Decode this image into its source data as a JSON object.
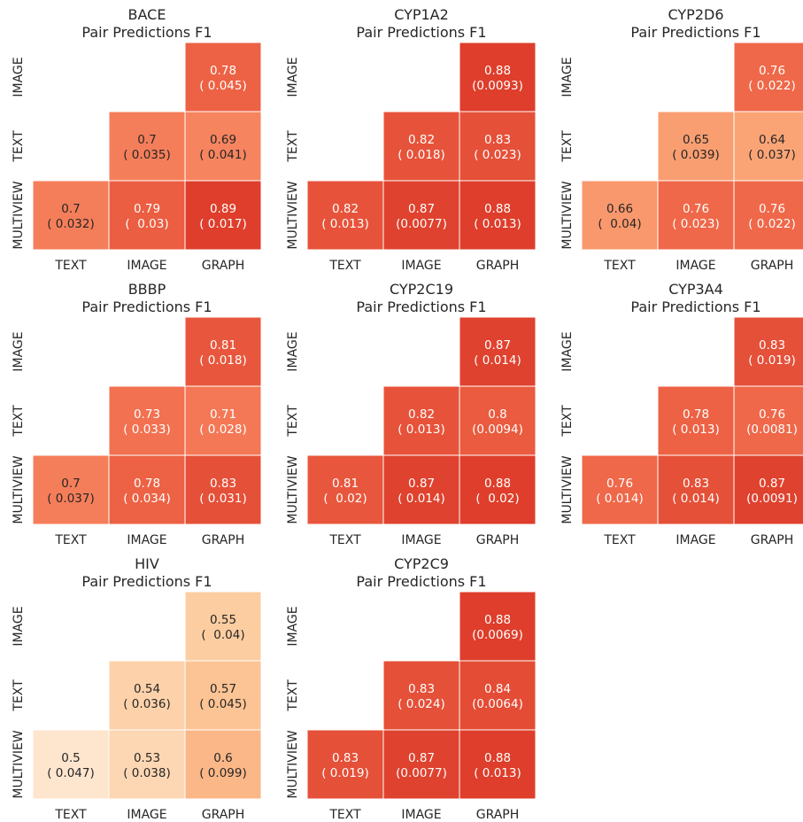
{
  "chart_data": [
    {
      "type": "heatmap",
      "title": "BACE",
      "subtitle": "Pair Predictions F1",
      "x_ticklabels": [
        "TEXT",
        "IMAGE",
        "GRAPH"
      ],
      "y_ticklabels": [
        "IMAGE",
        "TEXT",
        "MULTIVIEW"
      ],
      "cells": [
        {
          "row": "IMAGE",
          "col": "GRAPH",
          "value": 0.78,
          "label": "0.78",
          "std_label": "( 0.045)"
        },
        {
          "row": "TEXT",
          "col": "IMAGE",
          "value": 0.7,
          "label": "0.7",
          "std_label": "( 0.035)"
        },
        {
          "row": "TEXT",
          "col": "GRAPH",
          "value": 0.69,
          "label": "0.69",
          "std_label": "( 0.041)"
        },
        {
          "row": "MULTIVIEW",
          "col": "TEXT",
          "value": 0.7,
          "label": "0.7",
          "std_label": "( 0.032)"
        },
        {
          "row": "MULTIVIEW",
          "col": "IMAGE",
          "value": 0.79,
          "label": "0.79",
          "std_label": "(  0.03)"
        },
        {
          "row": "MULTIVIEW",
          "col": "GRAPH",
          "value": 0.89,
          "label": "0.89",
          "std_label": "( 0.017)"
        }
      ]
    },
    {
      "type": "heatmap",
      "title": "CYP1A2",
      "subtitle": "Pair Predictions F1",
      "x_ticklabels": [
        "TEXT",
        "IMAGE",
        "GRAPH"
      ],
      "y_ticklabels": [
        "IMAGE",
        "TEXT",
        "MULTIVIEW"
      ],
      "cells": [
        {
          "row": "IMAGE",
          "col": "GRAPH",
          "value": 0.88,
          "label": "0.88",
          "std_label": "(0.0093)"
        },
        {
          "row": "TEXT",
          "col": "IMAGE",
          "value": 0.82,
          "label": "0.82",
          "std_label": "( 0.018)"
        },
        {
          "row": "TEXT",
          "col": "GRAPH",
          "value": 0.83,
          "label": "0.83",
          "std_label": "( 0.023)"
        },
        {
          "row": "MULTIVIEW",
          "col": "TEXT",
          "value": 0.82,
          "label": "0.82",
          "std_label": "( 0.013)"
        },
        {
          "row": "MULTIVIEW",
          "col": "IMAGE",
          "value": 0.87,
          "label": "0.87",
          "std_label": "(0.0077)"
        },
        {
          "row": "MULTIVIEW",
          "col": "GRAPH",
          "value": 0.88,
          "label": "0.88",
          "std_label": "( 0.013)"
        }
      ]
    },
    {
      "type": "heatmap",
      "title": "CYP2D6",
      "subtitle": "Pair Predictions F1",
      "x_ticklabels": [
        "TEXT",
        "IMAGE",
        "GRAPH"
      ],
      "y_ticklabels": [
        "IMAGE",
        "TEXT",
        "MULTIVIEW"
      ],
      "cells": [
        {
          "row": "IMAGE",
          "col": "GRAPH",
          "value": 0.76,
          "label": "0.76",
          "std_label": "( 0.022)"
        },
        {
          "row": "TEXT",
          "col": "IMAGE",
          "value": 0.65,
          "label": "0.65",
          "std_label": "( 0.039)"
        },
        {
          "row": "TEXT",
          "col": "GRAPH",
          "value": 0.64,
          "label": "0.64",
          "std_label": "( 0.037)"
        },
        {
          "row": "MULTIVIEW",
          "col": "TEXT",
          "value": 0.66,
          "label": "0.66",
          "std_label": "(  0.04)"
        },
        {
          "row": "MULTIVIEW",
          "col": "IMAGE",
          "value": 0.76,
          "label": "0.76",
          "std_label": "( 0.023)"
        },
        {
          "row": "MULTIVIEW",
          "col": "GRAPH",
          "value": 0.76,
          "label": "0.76",
          "std_label": "( 0.022)"
        }
      ]
    },
    {
      "type": "heatmap",
      "title": "BBBP",
      "subtitle": "Pair Predictions F1",
      "x_ticklabels": [
        "TEXT",
        "IMAGE",
        "GRAPH"
      ],
      "y_ticklabels": [
        "IMAGE",
        "TEXT",
        "MULTIVIEW"
      ],
      "cells": [
        {
          "row": "IMAGE",
          "col": "GRAPH",
          "value": 0.81,
          "label": "0.81",
          "std_label": "( 0.018)"
        },
        {
          "row": "TEXT",
          "col": "IMAGE",
          "value": 0.73,
          "label": "0.73",
          "std_label": "( 0.033)"
        },
        {
          "row": "TEXT",
          "col": "GRAPH",
          "value": 0.71,
          "label": "0.71",
          "std_label": "( 0.028)"
        },
        {
          "row": "MULTIVIEW",
          "col": "TEXT",
          "value": 0.7,
          "label": "0.7",
          "std_label": "( 0.037)"
        },
        {
          "row": "MULTIVIEW",
          "col": "IMAGE",
          "value": 0.78,
          "label": "0.78",
          "std_label": "( 0.034)"
        },
        {
          "row": "MULTIVIEW",
          "col": "GRAPH",
          "value": 0.83,
          "label": "0.83",
          "std_label": "( 0.031)"
        }
      ]
    },
    {
      "type": "heatmap",
      "title": "CYP2C19",
      "subtitle": "Pair Predictions F1",
      "x_ticklabels": [
        "TEXT",
        "IMAGE",
        "GRAPH"
      ],
      "y_ticklabels": [
        "IMAGE",
        "TEXT",
        "MULTIVIEW"
      ],
      "cells": [
        {
          "row": "IMAGE",
          "col": "GRAPH",
          "value": 0.87,
          "label": "0.87",
          "std_label": "( 0.014)"
        },
        {
          "row": "TEXT",
          "col": "IMAGE",
          "value": 0.82,
          "label": "0.82",
          "std_label": "( 0.013)"
        },
        {
          "row": "TEXT",
          "col": "GRAPH",
          "value": 0.8,
          "label": "0.8",
          "std_label": "(0.0094)"
        },
        {
          "row": "MULTIVIEW",
          "col": "TEXT",
          "value": 0.81,
          "label": "0.81",
          "std_label": "(  0.02)"
        },
        {
          "row": "MULTIVIEW",
          "col": "IMAGE",
          "value": 0.87,
          "label": "0.87",
          "std_label": "( 0.014)"
        },
        {
          "row": "MULTIVIEW",
          "col": "GRAPH",
          "value": 0.88,
          "label": "0.88",
          "std_label": "(  0.02)"
        }
      ]
    },
    {
      "type": "heatmap",
      "title": "CYP3A4",
      "subtitle": "Pair Predictions F1",
      "x_ticklabels": [
        "TEXT",
        "IMAGE",
        "GRAPH"
      ],
      "y_ticklabels": [
        "IMAGE",
        "TEXT",
        "MULTIVIEW"
      ],
      "cells": [
        {
          "row": "IMAGE",
          "col": "GRAPH",
          "value": 0.83,
          "label": "0.83",
          "std_label": "( 0.019)"
        },
        {
          "row": "TEXT",
          "col": "IMAGE",
          "value": 0.78,
          "label": "0.78",
          "std_label": "( 0.013)"
        },
        {
          "row": "TEXT",
          "col": "GRAPH",
          "value": 0.76,
          "label": "0.76",
          "std_label": "(0.0081)"
        },
        {
          "row": "MULTIVIEW",
          "col": "TEXT",
          "value": 0.76,
          "label": "0.76",
          "std_label": "( 0.014)"
        },
        {
          "row": "MULTIVIEW",
          "col": "IMAGE",
          "value": 0.83,
          "label": "0.83",
          "std_label": "( 0.014)"
        },
        {
          "row": "MULTIVIEW",
          "col": "GRAPH",
          "value": 0.87,
          "label": "0.87",
          "std_label": "(0.0091)"
        }
      ]
    },
    {
      "type": "heatmap",
      "title": "HIV",
      "subtitle": "Pair Predictions F1",
      "x_ticklabels": [
        "TEXT",
        "IMAGE",
        "GRAPH"
      ],
      "y_ticklabels": [
        "IMAGE",
        "TEXT",
        "MULTIVIEW"
      ],
      "cells": [
        {
          "row": "IMAGE",
          "col": "GRAPH",
          "value": 0.55,
          "label": "0.55",
          "std_label": "(  0.04)"
        },
        {
          "row": "TEXT",
          "col": "IMAGE",
          "value": 0.54,
          "label": "0.54",
          "std_label": "( 0.036)"
        },
        {
          "row": "TEXT",
          "col": "GRAPH",
          "value": 0.57,
          "label": "0.57",
          "std_label": "( 0.045)"
        },
        {
          "row": "MULTIVIEW",
          "col": "TEXT",
          "value": 0.5,
          "label": "0.5",
          "std_label": "( 0.047)"
        },
        {
          "row": "MULTIVIEW",
          "col": "IMAGE",
          "value": 0.53,
          "label": "0.53",
          "std_label": "( 0.038)"
        },
        {
          "row": "MULTIVIEW",
          "col": "GRAPH",
          "value": 0.6,
          "label": "0.6",
          "std_label": "( 0.099)"
        }
      ]
    },
    {
      "type": "heatmap",
      "title": "CYP2C9",
      "subtitle": "Pair Predictions F1",
      "x_ticklabels": [
        "TEXT",
        "IMAGE",
        "GRAPH"
      ],
      "y_ticklabels": [
        "IMAGE",
        "TEXT",
        "MULTIVIEW"
      ],
      "cells": [
        {
          "row": "IMAGE",
          "col": "GRAPH",
          "value": 0.88,
          "label": "0.88",
          "std_label": "(0.0069)"
        },
        {
          "row": "TEXT",
          "col": "IMAGE",
          "value": 0.83,
          "label": "0.83",
          "std_label": "( 0.024)"
        },
        {
          "row": "TEXT",
          "col": "GRAPH",
          "value": 0.84,
          "label": "0.84",
          "std_label": "(0.0064)"
        },
        {
          "row": "MULTIVIEW",
          "col": "TEXT",
          "value": 0.83,
          "label": "0.83",
          "std_label": "( 0.019)"
        },
        {
          "row": "MULTIVIEW",
          "col": "IMAGE",
          "value": 0.87,
          "label": "0.87",
          "std_label": "(0.0077)"
        },
        {
          "row": "MULTIVIEW",
          "col": "GRAPH",
          "value": 0.88,
          "label": "0.88",
          "std_label": "( 0.013)"
        }
      ]
    }
  ]
}
